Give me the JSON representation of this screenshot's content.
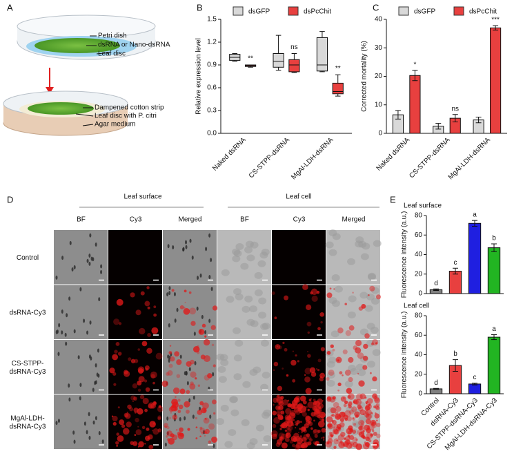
{
  "panels": [
    "A",
    "B",
    "C",
    "D",
    "E"
  ],
  "diagram": {
    "labels": [
      "Petri dish",
      "dsRNA or Nano-dsRNA",
      "Leaf disc",
      "Dampened cotton strip",
      "Leaf disc with P. citri",
      "Agar medium"
    ]
  },
  "chart_data": [
    {
      "type": "box",
      "ylabel": "Relative expression level",
      "categories": [
        "Naked dsRNA",
        "CS-STPP-dsRNA",
        "MgAl-LDH-dsRNA"
      ],
      "ylim": [
        0,
        1.5
      ],
      "yticks": [
        {
          "value": 0,
          "label": "0.0"
        },
        0.3,
        0.6,
        0.9,
        1.2,
        1.5
      ],
      "legend": "top",
      "series": [
        {
          "name": "dsGFP",
          "color": "#d9d9d9",
          "values": [
            {
              "min": 0.95,
              "q1": 0.96,
              "median": 1.0,
              "q3": 1.04,
              "max": 1.05
            },
            {
              "min": 0.83,
              "q1": 0.87,
              "median": 0.95,
              "q3": 1.05,
              "max": 1.29
            },
            {
              "min": 0.81,
              "q1": 0.82,
              "median": 0.9,
              "q3": 1.26,
              "max": 1.34
            }
          ]
        },
        {
          "name": "dsPcChit",
          "color": "#e8403f",
          "values": [
            {
              "min": 0.87,
              "q1": 0.88,
              "median": 0.89,
              "q3": 0.9,
              "max": 0.9
            },
            {
              "min": 0.8,
              "q1": 0.81,
              "median": 0.9,
              "q3": 0.97,
              "max": 1.05
            },
            {
              "min": 0.49,
              "q1": 0.52,
              "median": 0.55,
              "q3": 0.66,
              "max": 0.77
            }
          ],
          "annotations": [
            "**",
            "ns",
            "**"
          ]
        }
      ]
    },
    {
      "type": "bar",
      "ylabel": "Corrected mortality (%)",
      "categories": [
        "Naked dsRNA",
        "CS-STPP-dsRNA",
        "MgAl-LDH-dsRNA"
      ],
      "ylim": [
        0,
        40
      ],
      "yticks": [
        0,
        10,
        20,
        30,
        40
      ],
      "legend": "top",
      "series": [
        {
          "name": "dsGFP",
          "color": "#d9d9d9",
          "values": [
            6.5,
            2.5,
            4.7
          ],
          "errors": [
            1.5,
            1,
            1
          ]
        },
        {
          "name": "dsPcChit",
          "color": "#e8403f",
          "values": [
            20.3,
            5.3,
            37
          ],
          "errors": [
            1.8,
            1.3,
            0.8
          ],
          "annotations": [
            "*",
            "ns",
            "***"
          ]
        }
      ]
    },
    {
      "type": "bar",
      "title": "Leaf surface",
      "ylabel": "Fluorescence intensity (a.u.)",
      "ylim": [
        0,
        80
      ],
      "yticks": [
        0,
        20,
        40,
        60,
        80
      ],
      "values": [
        4,
        23,
        72,
        47
      ],
      "errors": [
        0.8,
        3,
        3,
        4
      ],
      "colors": [
        "#808080",
        "#e8403f",
        "#1f1fe0",
        "#22b522"
      ],
      "annotations": [
        "d",
        "c",
        "a",
        "b"
      ]
    },
    {
      "type": "bar",
      "title": "Leaf cell",
      "ylabel": "Fluorescence intensity (a.u.)",
      "categories": [
        "Control",
        "dsRNA-Cy3",
        "CS-STPP-dsRNA-Cy3",
        "MgAl-LDH-dsRNA-Cy3"
      ],
      "ylim": [
        0,
        80
      ],
      "yticks": [
        0,
        20,
        40,
        60,
        80
      ],
      "values": [
        5,
        29,
        10,
        58
      ],
      "errors": [
        0.5,
        6,
        1,
        2.5
      ],
      "colors": [
        "#808080",
        "#e8403f",
        "#1f1fe0",
        "#22b522"
      ],
      "annotations": [
        "d",
        "b",
        "c",
        "a"
      ]
    }
  ],
  "micrographs": {
    "groups": [
      "Leaf surface",
      "Leaf cell"
    ],
    "columns": [
      "BF",
      "Cy3",
      "Merged",
      "BF",
      "Cy3",
      "Merged"
    ],
    "rows": [
      "Control",
      "dsRNA-Cy3",
      "CS-STPP-\ndsRNA-Cy3",
      "MgAl-LDH-\ndsRNA-Cy3"
    ]
  }
}
